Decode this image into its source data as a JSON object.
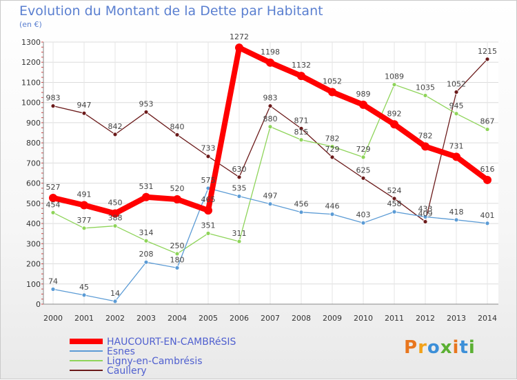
{
  "chart_data": {
    "type": "line",
    "title": "Evolution du Montant de la Dette par Habitant",
    "unit": "(en €)",
    "x": [
      "2000",
      "2001",
      "2002",
      "2003",
      "2004",
      "2005",
      "2006",
      "2007",
      "2008",
      "2009",
      "2010",
      "2011",
      "2012",
      "2013",
      "2014"
    ],
    "ylim": [
      0,
      1300
    ],
    "yticks": [
      0,
      100,
      200,
      300,
      400,
      500,
      600,
      700,
      800,
      900,
      1000,
      1100,
      1200,
      1300
    ],
    "grid": true,
    "legend_position": "bottom",
    "series": [
      {
        "name": "HAUCOURT-EN-CAMBRéSIS",
        "color": "#ff0000",
        "values": [
          527,
          491,
          450,
          531,
          520,
          465,
          1272,
          1198,
          1132,
          1052,
          989,
          892,
          782,
          731,
          616
        ]
      },
      {
        "name": "Esnes",
        "color": "#5b9bd5",
        "values": [
          74,
          45,
          14,
          208,
          180,
          575,
          535,
          497,
          456,
          446,
          403,
          458,
          433,
          418,
          401
        ]
      },
      {
        "name": "Ligny-en-Cambrésis",
        "color": "#8ed459",
        "values": [
          454,
          377,
          388,
          314,
          250,
          351,
          311,
          880,
          815,
          782,
          729,
          1089,
          1035,
          945,
          867
        ]
      },
      {
        "name": "Caullery",
        "color": "#6b1a1a",
        "values": [
          983,
          947,
          842,
          953,
          840,
          733,
          630,
          983,
          871,
          729,
          625,
          524,
          409,
          1052,
          1215
        ]
      }
    ]
  },
  "logo": {
    "text": "Proxiti",
    "colors": [
      "#e8761e",
      "#f2a21a",
      "#3c8fd8",
      "#5bb033",
      "#e8761e",
      "#3c8fd8",
      "#5bb033"
    ]
  }
}
